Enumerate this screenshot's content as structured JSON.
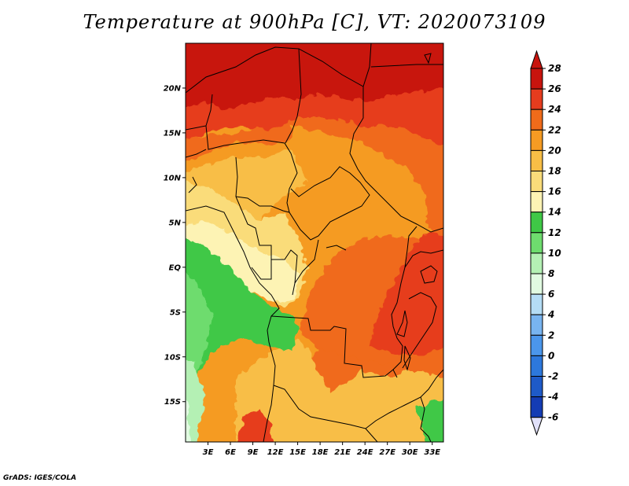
{
  "title": "Temperature at 900hPa [C], VT: 2020073109",
  "credit": "GrADS: IGES/COLA",
  "map": {
    "variable": "Temperature",
    "level": "900hPa",
    "units": "C",
    "valid_time": "2020073109",
    "lat_labels": [
      "20N",
      "15N",
      "10N",
      "5N",
      "EQ",
      "5S",
      "10S",
      "15S"
    ],
    "lat_values": [
      20,
      15,
      10,
      5,
      0,
      -5,
      -10,
      -15
    ],
    "lon_labels": [
      "3E",
      "6E",
      "9E",
      "12E",
      "15E",
      "18E",
      "21E",
      "24E",
      "27E",
      "30E",
      "33E"
    ],
    "lon_values": [
      3,
      6,
      9,
      12,
      15,
      18,
      21,
      24,
      27,
      30,
      33
    ],
    "lon_range": [
      0,
      34.5
    ],
    "lat_range": [
      -19.5,
      25
    ],
    "colors": {
      "c28": "#c8140e",
      "c26": "#e63c1e",
      "c24": "#f06b1a",
      "c22": "#f59b23",
      "c20": "#f8be46",
      "c18": "#fadc7a",
      "c16": "#fdf3b4",
      "g14": "#3fc846",
      "g12": "#6edc6e",
      "g10": "#b4f0b4",
      "g8": "#e1fae1"
    }
  },
  "colorbar": {
    "labels": [
      "28",
      "26",
      "24",
      "22",
      "20",
      "18",
      "16",
      "14",
      "12",
      "10",
      "8",
      "6",
      "4",
      "2",
      "0",
      "-2",
      "-4",
      "-6"
    ],
    "colors": [
      "#c8140e",
      "#e63c1e",
      "#f06b1a",
      "#f59b23",
      "#f8be46",
      "#fadc7a",
      "#fdf3b4",
      "#3fc846",
      "#6edc6e",
      "#b4f0b4",
      "#e1fae1",
      "#b4dcf5",
      "#78b4f0",
      "#4b96eb",
      "#2d78dc",
      "#1e5ac8",
      "#143cb4",
      "#0f1e78"
    ],
    "top_arrow_color": "#c8140e",
    "bottom_arrow_color": "#e1e1fa"
  }
}
